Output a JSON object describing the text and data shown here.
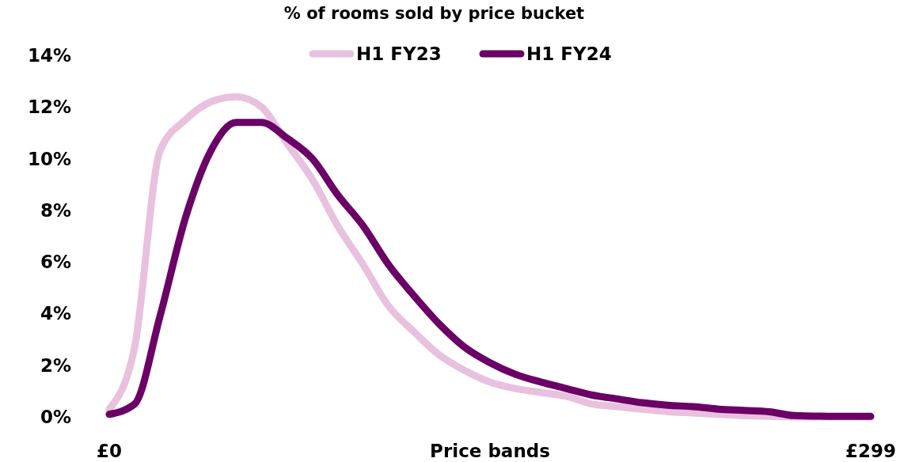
{
  "chart_data": {
    "type": "line",
    "title": "% of rooms sold by price bucket",
    "xlabel": "Price bands",
    "categories": [
      "£0",
      null,
      null,
      null,
      null,
      null,
      null,
      null,
      null,
      null,
      null,
      null,
      null,
      null,
      null,
      null,
      null,
      null,
      null,
      null,
      null,
      null,
      null,
      null,
      null,
      null,
      null,
      null,
      null,
      null,
      "£299"
    ],
    "series": [
      {
        "name": "H1 FY23",
        "color": "#e8c1de",
        "values": [
          0.3,
          2.7,
          10.3,
          11.5,
          12.2,
          12.4,
          12.0,
          10.6,
          9.2,
          7.4,
          5.9,
          4.3,
          3.3,
          2.4,
          1.8,
          1.35,
          1.1,
          0.95,
          0.8,
          0.5,
          0.4,
          0.3,
          0.2,
          0.15,
          0.1,
          0.05,
          0.02,
          0,
          0,
          0,
          0
        ]
      },
      {
        "name": "H1 FY24",
        "color": "#6b0066",
        "values": [
          0.1,
          0.5,
          3.9,
          7.7,
          10.3,
          11.4,
          11.4,
          10.8,
          10.0,
          8.6,
          7.4,
          5.9,
          4.7,
          3.6,
          2.7,
          2.1,
          1.65,
          1.35,
          1.1,
          0.85,
          0.7,
          0.55,
          0.45,
          0.4,
          0.3,
          0.25,
          0.2,
          0.05,
          0.03,
          0.02,
          0.02
        ]
      }
    ],
    "ylim": [
      0,
      14
    ],
    "yticks": [
      {
        "value": 0,
        "label": "0%"
      },
      {
        "value": 2,
        "label": "2%"
      },
      {
        "value": 4,
        "label": "4%"
      },
      {
        "value": 6,
        "label": "6%"
      },
      {
        "value": 8,
        "label": "8%"
      },
      {
        "value": 10,
        "label": "10%"
      },
      {
        "value": 12,
        "label": "12%"
      },
      {
        "value": 14,
        "label": "14%"
      }
    ],
    "grid": false,
    "legend": "top",
    "marker": "none",
    "line_style": "solid"
  }
}
